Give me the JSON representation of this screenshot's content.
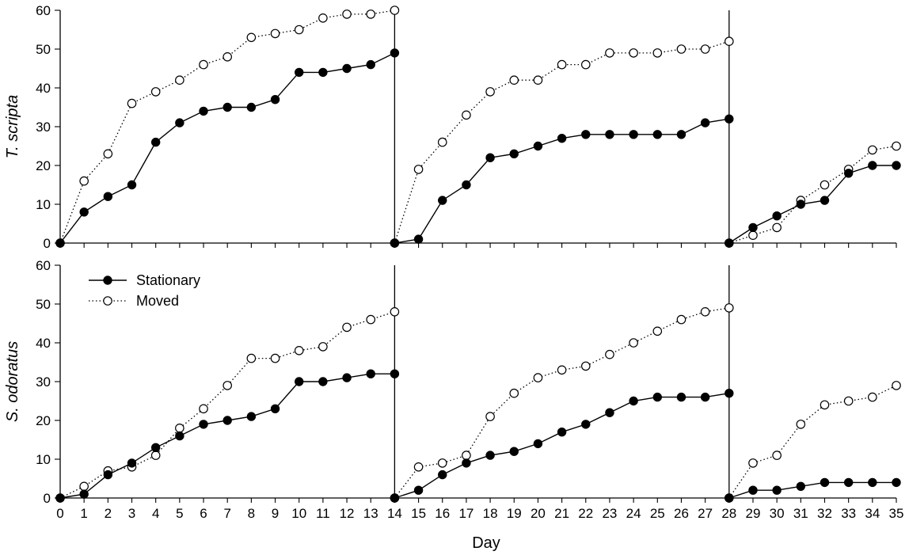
{
  "chart_data": {
    "type": "line",
    "xlabel": "Day",
    "x_ticks": [
      0,
      1,
      2,
      3,
      4,
      5,
      6,
      7,
      8,
      9,
      10,
      11,
      12,
      13,
      14,
      15,
      16,
      17,
      18,
      19,
      20,
      21,
      22,
      23,
      24,
      25,
      26,
      27,
      28,
      29,
      30,
      31,
      32,
      33,
      34,
      35
    ],
    "xlim": [
      0,
      35
    ],
    "ylim": [
      0,
      60
    ],
    "y_ticks": [
      0,
      10,
      20,
      30,
      40,
      50,
      60
    ],
    "period_separators": [
      14,
      28
    ],
    "legend": {
      "placement": "top-left",
      "panel": 1,
      "entries": [
        "Stationary",
        "Moved"
      ]
    },
    "colors": {
      "line": "#000000",
      "moved_fill": "#ffffff",
      "stationary_fill": "#000000"
    },
    "panels": [
      {
        "ylabel": "T. scripta",
        "segments": [
          {
            "x": [
              0,
              1,
              2,
              3,
              4,
              5,
              6,
              7,
              8,
              9,
              10,
              11,
              12,
              13,
              14
            ],
            "series": [
              {
                "name": "Stationary",
                "values": [
                  0,
                  8,
                  12,
                  15,
                  26,
                  31,
                  34,
                  35,
                  35,
                  37,
                  44,
                  44,
                  45,
                  46,
                  49
                ]
              },
              {
                "name": "Moved",
                "values": [
                  0,
                  16,
                  23,
                  36,
                  39,
                  42,
                  46,
                  48,
                  53,
                  54,
                  55,
                  58,
                  59,
                  59,
                  60
                ]
              }
            ]
          },
          {
            "x": [
              14,
              15,
              16,
              17,
              18,
              19,
              20,
              21,
              22,
              23,
              24,
              25,
              26,
              27,
              28
            ],
            "series": [
              {
                "name": "Stationary",
                "values": [
                  0,
                  1,
                  11,
                  15,
                  22,
                  23,
                  25,
                  27,
                  28,
                  28,
                  28,
                  28,
                  28,
                  31,
                  32
                ]
              },
              {
                "name": "Moved",
                "values": [
                  0,
                  19,
                  26,
                  33,
                  39,
                  42,
                  42,
                  46,
                  46,
                  49,
                  49,
                  49,
                  50,
                  50,
                  52
                ]
              }
            ]
          },
          {
            "x": [
              28,
              29,
              30,
              31,
              32,
              33,
              34,
              35
            ],
            "series": [
              {
                "name": "Stationary",
                "values": [
                  0,
                  4,
                  7,
                  10,
                  11,
                  18,
                  20,
                  20
                ]
              },
              {
                "name": "Moved",
                "values": [
                  0,
                  2,
                  4,
                  11,
                  15,
                  19,
                  24,
                  25
                ]
              }
            ]
          }
        ]
      },
      {
        "ylabel": "S. odoratus",
        "segments": [
          {
            "x": [
              0,
              1,
              2,
              3,
              4,
              5,
              6,
              7,
              8,
              9,
              10,
              11,
              12,
              13,
              14
            ],
            "series": [
              {
                "name": "Stationary",
                "values": [
                  0,
                  1,
                  6,
                  9,
                  13,
                  16,
                  19,
                  20,
                  21,
                  23,
                  30,
                  30,
                  31,
                  32,
                  32
                ]
              },
              {
                "name": "Moved",
                "values": [
                  0,
                  3,
                  7,
                  8,
                  11,
                  18,
                  23,
                  29,
                  36,
                  36,
                  38,
                  39,
                  44,
                  46,
                  48
                ]
              }
            ]
          },
          {
            "x": [
              14,
              15,
              16,
              17,
              18,
              19,
              20,
              21,
              22,
              23,
              24,
              25,
              26,
              27,
              28
            ],
            "series": [
              {
                "name": "Stationary",
                "values": [
                  0,
                  2,
                  6,
                  9,
                  11,
                  12,
                  14,
                  17,
                  19,
                  22,
                  25,
                  26,
                  26,
                  26,
                  27
                ]
              },
              {
                "name": "Moved",
                "values": [
                  0,
                  8,
                  9,
                  11,
                  21,
                  27,
                  31,
                  33,
                  34,
                  37,
                  40,
                  43,
                  46,
                  48,
                  49
                ]
              }
            ]
          },
          {
            "x": [
              28,
              29,
              30,
              31,
              32,
              33,
              34,
              35
            ],
            "series": [
              {
                "name": "Stationary",
                "values": [
                  0,
                  2,
                  2,
                  3,
                  4,
                  4,
                  4,
                  4
                ]
              },
              {
                "name": "Moved",
                "values": [
                  0,
                  9,
                  11,
                  19,
                  24,
                  25,
                  26,
                  29
                ]
              }
            ]
          }
        ]
      }
    ]
  }
}
